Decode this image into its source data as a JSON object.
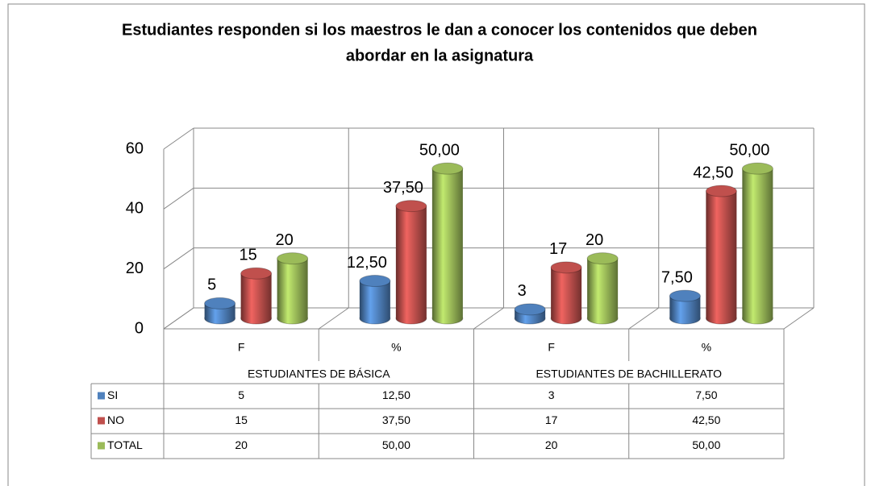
{
  "chart_data": {
    "type": "bar",
    "title": "Estudiantes responden si los maestros le dan a conocer los contenidos que deben abordar en la asignatura",
    "categories": [
      "F",
      "%",
      "F",
      "%"
    ],
    "groups": [
      "ESTUDIANTES DE BÁSICA",
      "ESTUDIANTES DE BACHILLERATO"
    ],
    "series": [
      {
        "name": "SI",
        "color": "#4f81bd",
        "values": [
          5,
          12.5,
          3,
          7.5
        ],
        "value_labels": [
          "5",
          "12,50",
          "3",
          "7,50"
        ]
      },
      {
        "name": "NO",
        "color": "#c0504d",
        "values": [
          15,
          37.5,
          17,
          42.5
        ],
        "value_labels": [
          "15",
          "37,50",
          "17",
          "42,50"
        ]
      },
      {
        "name": "TOTAL",
        "color": "#9bbb59",
        "values": [
          20,
          50,
          20,
          50
        ],
        "value_labels": [
          "20",
          "50,00",
          "20",
          "50,00"
        ]
      }
    ],
    "ylim": [
      0,
      60
    ],
    "yticks": [
      0,
      20,
      40,
      60
    ],
    "grid": true
  }
}
